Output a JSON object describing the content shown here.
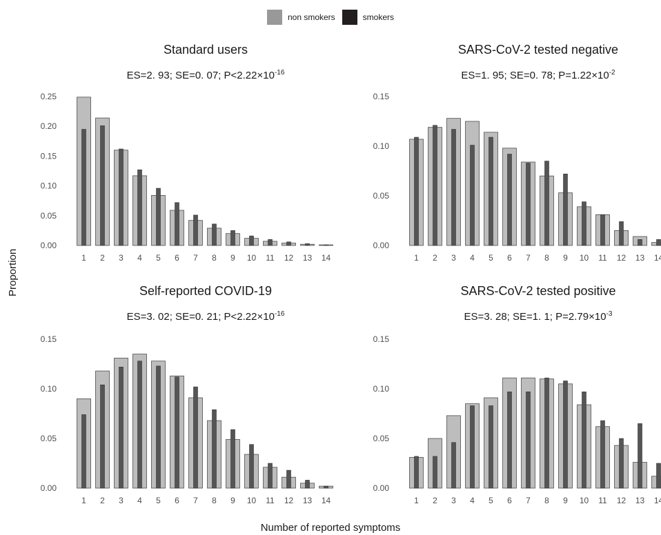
{
  "legend": {
    "items": [
      {
        "label": "non smokers",
        "color": "#bdbdbd"
      },
      {
        "label": "smokers",
        "color": "#231f20"
      }
    ]
  },
  "xlabel": "Number of reported symptoms",
  "ylabel": "Proportion",
  "colors": {
    "non_smokers_fill": "#bdbdbd",
    "non_smokers_stroke": "#4d4d4d",
    "smokers_fill": "#555555",
    "smokers_stroke": "#333333",
    "axis_text": "#4d4d4d"
  },
  "chart_data": [
    {
      "type": "bar",
      "title": "Standard users",
      "stats": {
        "text": "ES=2. 93; SE=0. 07; P<2.22×10",
        "exponent": "-16"
      },
      "categories": [
        "1",
        "2",
        "3",
        "4",
        "5",
        "6",
        "7",
        "8",
        "9",
        "10",
        "11",
        "12",
        "13",
        "14"
      ],
      "ylim": [
        0,
        0.25
      ],
      "yticks": [
        "0.00",
        "0.05",
        "0.10",
        "0.15",
        "0.20",
        "0.25"
      ],
      "series": [
        {
          "name": "non smokers",
          "values": [
            0.249,
            0.214,
            0.16,
            0.117,
            0.084,
            0.059,
            0.042,
            0.029,
            0.02,
            0.012,
            0.007,
            0.004,
            0.002,
            0.001
          ]
        },
        {
          "name": "smokers",
          "values": [
            0.195,
            0.201,
            0.162,
            0.127,
            0.096,
            0.072,
            0.051,
            0.036,
            0.025,
            0.016,
            0.01,
            0.006,
            0.003,
            0.001
          ]
        }
      ]
    },
    {
      "type": "bar",
      "title": "SARS-CoV-2 tested negative",
      "stats": {
        "text": "ES=1. 95; SE=0. 78; P=1.22×10",
        "exponent": "-2"
      },
      "categories": [
        "1",
        "2",
        "3",
        "4",
        "5",
        "6",
        "7",
        "8",
        "9",
        "10",
        "11",
        "12",
        "13",
        "14"
      ],
      "ylim": [
        0,
        0.15
      ],
      "yticks": [
        "0.00",
        "0.05",
        "0.10",
        "0.15"
      ],
      "series": [
        {
          "name": "non smokers",
          "values": [
            0.107,
            0.119,
            0.128,
            0.125,
            0.114,
            0.098,
            0.084,
            0.07,
            0.053,
            0.039,
            0.031,
            0.015,
            0.009,
            0.003
          ]
        },
        {
          "name": "smokers",
          "values": [
            0.109,
            0.121,
            0.117,
            0.101,
            0.109,
            0.092,
            0.083,
            0.085,
            0.072,
            0.044,
            0.031,
            0.024,
            0.006,
            0.006
          ]
        }
      ]
    },
    {
      "type": "bar",
      "title": "Self-reported COVID-19",
      "stats": {
        "text": "ES=3. 02; SE=0. 21; P<2.22×10",
        "exponent": "-16"
      },
      "categories": [
        "1",
        "2",
        "3",
        "4",
        "5",
        "6",
        "7",
        "8",
        "9",
        "10",
        "11",
        "12",
        "13",
        "14"
      ],
      "ylim": [
        0,
        0.15
      ],
      "yticks": [
        "0.00",
        "0.05",
        "0.10",
        "0.15"
      ],
      "series": [
        {
          "name": "non smokers",
          "values": [
            0.09,
            0.118,
            0.131,
            0.135,
            0.128,
            0.113,
            0.091,
            0.068,
            0.049,
            0.034,
            0.021,
            0.011,
            0.005,
            0.002
          ]
        },
        {
          "name": "smokers",
          "values": [
            0.074,
            0.104,
            0.122,
            0.128,
            0.123,
            0.112,
            0.102,
            0.079,
            0.059,
            0.044,
            0.025,
            0.018,
            0.008,
            0.002
          ]
        }
      ]
    },
    {
      "type": "bar",
      "title": "SARS-CoV-2 tested positive",
      "stats": {
        "text": "ES=3. 28; SE=1. 1; P=2.79×10",
        "exponent": "-3"
      },
      "categories": [
        "1",
        "2",
        "3",
        "4",
        "5",
        "6",
        "7",
        "8",
        "9",
        "10",
        "11",
        "12",
        "13",
        "14"
      ],
      "ylim": [
        0,
        0.15
      ],
      "yticks": [
        "0.00",
        "0.05",
        "0.10",
        "0.15"
      ],
      "series": [
        {
          "name": "non smokers",
          "values": [
            0.031,
            0.05,
            0.073,
            0.085,
            0.091,
            0.111,
            0.111,
            0.11,
            0.105,
            0.084,
            0.062,
            0.043,
            0.026,
            0.012
          ]
        },
        {
          "name": "smokers",
          "values": [
            0.032,
            0.032,
            0.046,
            0.083,
            0.083,
            0.097,
            0.097,
            0.111,
            0.108,
            0.097,
            0.068,
            0.05,
            0.065,
            0.025
          ]
        }
      ]
    }
  ]
}
